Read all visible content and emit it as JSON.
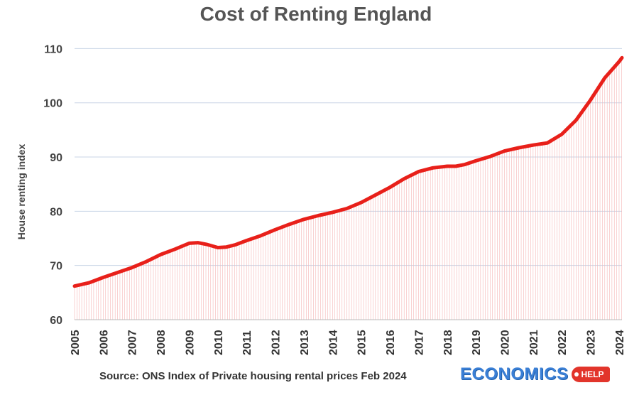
{
  "chart_data": {
    "type": "line",
    "title": "Cost of Renting England",
    "ylabel": "House renting index",
    "xlabel": "",
    "ylim": [
      60,
      113
    ],
    "xlim": [
      2005,
      2024.15
    ],
    "yticks": [
      60,
      70,
      80,
      90,
      100,
      110
    ],
    "xticks": [
      "2005",
      "2006",
      "2007",
      "2008",
      "2009",
      "2010",
      "2011",
      "2012",
      "2013",
      "2014",
      "2015",
      "2016",
      "2017",
      "2018",
      "2019",
      "2020",
      "2021",
      "2022",
      "2023",
      "2024"
    ],
    "grid": "horizontal",
    "colors": {
      "line": "#e8201a",
      "drop_lines": "#f5b5b5",
      "grid": "#c8d4e6"
    },
    "series": [
      {
        "x": [
          2005.0,
          2005.5,
          2006.0,
          2006.5,
          2007.0,
          2007.5,
          2008.0,
          2008.5,
          2009.0,
          2009.3,
          2009.6,
          2010.0,
          2010.3,
          2010.6,
          2011.0,
          2011.5,
          2012.0,
          2012.5,
          2013.0,
          2013.5,
          2014.0,
          2014.5,
          2015.0,
          2015.5,
          2016.0,
          2016.5,
          2017.0,
          2017.5,
          2018.0,
          2018.3,
          2018.6,
          2019.0,
          2019.5,
          2020.0,
          2020.5,
          2021.0,
          2021.5,
          2022.0,
          2022.5,
          2023.0,
          2023.5,
          2024.0,
          2024.1
        ],
        "values": [
          66.2,
          66.8,
          67.8,
          68.7,
          69.6,
          70.7,
          72.0,
          73.0,
          74.1,
          74.2,
          73.9,
          73.3,
          73.4,
          73.8,
          74.6,
          75.5,
          76.6,
          77.6,
          78.5,
          79.2,
          79.8,
          80.5,
          81.6,
          83.0,
          84.4,
          86.0,
          87.3,
          88.0,
          88.3,
          88.3,
          88.6,
          89.3,
          90.1,
          91.1,
          91.7,
          92.2,
          92.6,
          94.2,
          96.8,
          100.5,
          104.6,
          107.6,
          108.3
        ]
      }
    ]
  },
  "footer": {
    "source": "Source: ONS Index of Private housing rental prices Feb 2024",
    "logo_main": "ECONOMICS",
    "logo_help": "HELP"
  }
}
